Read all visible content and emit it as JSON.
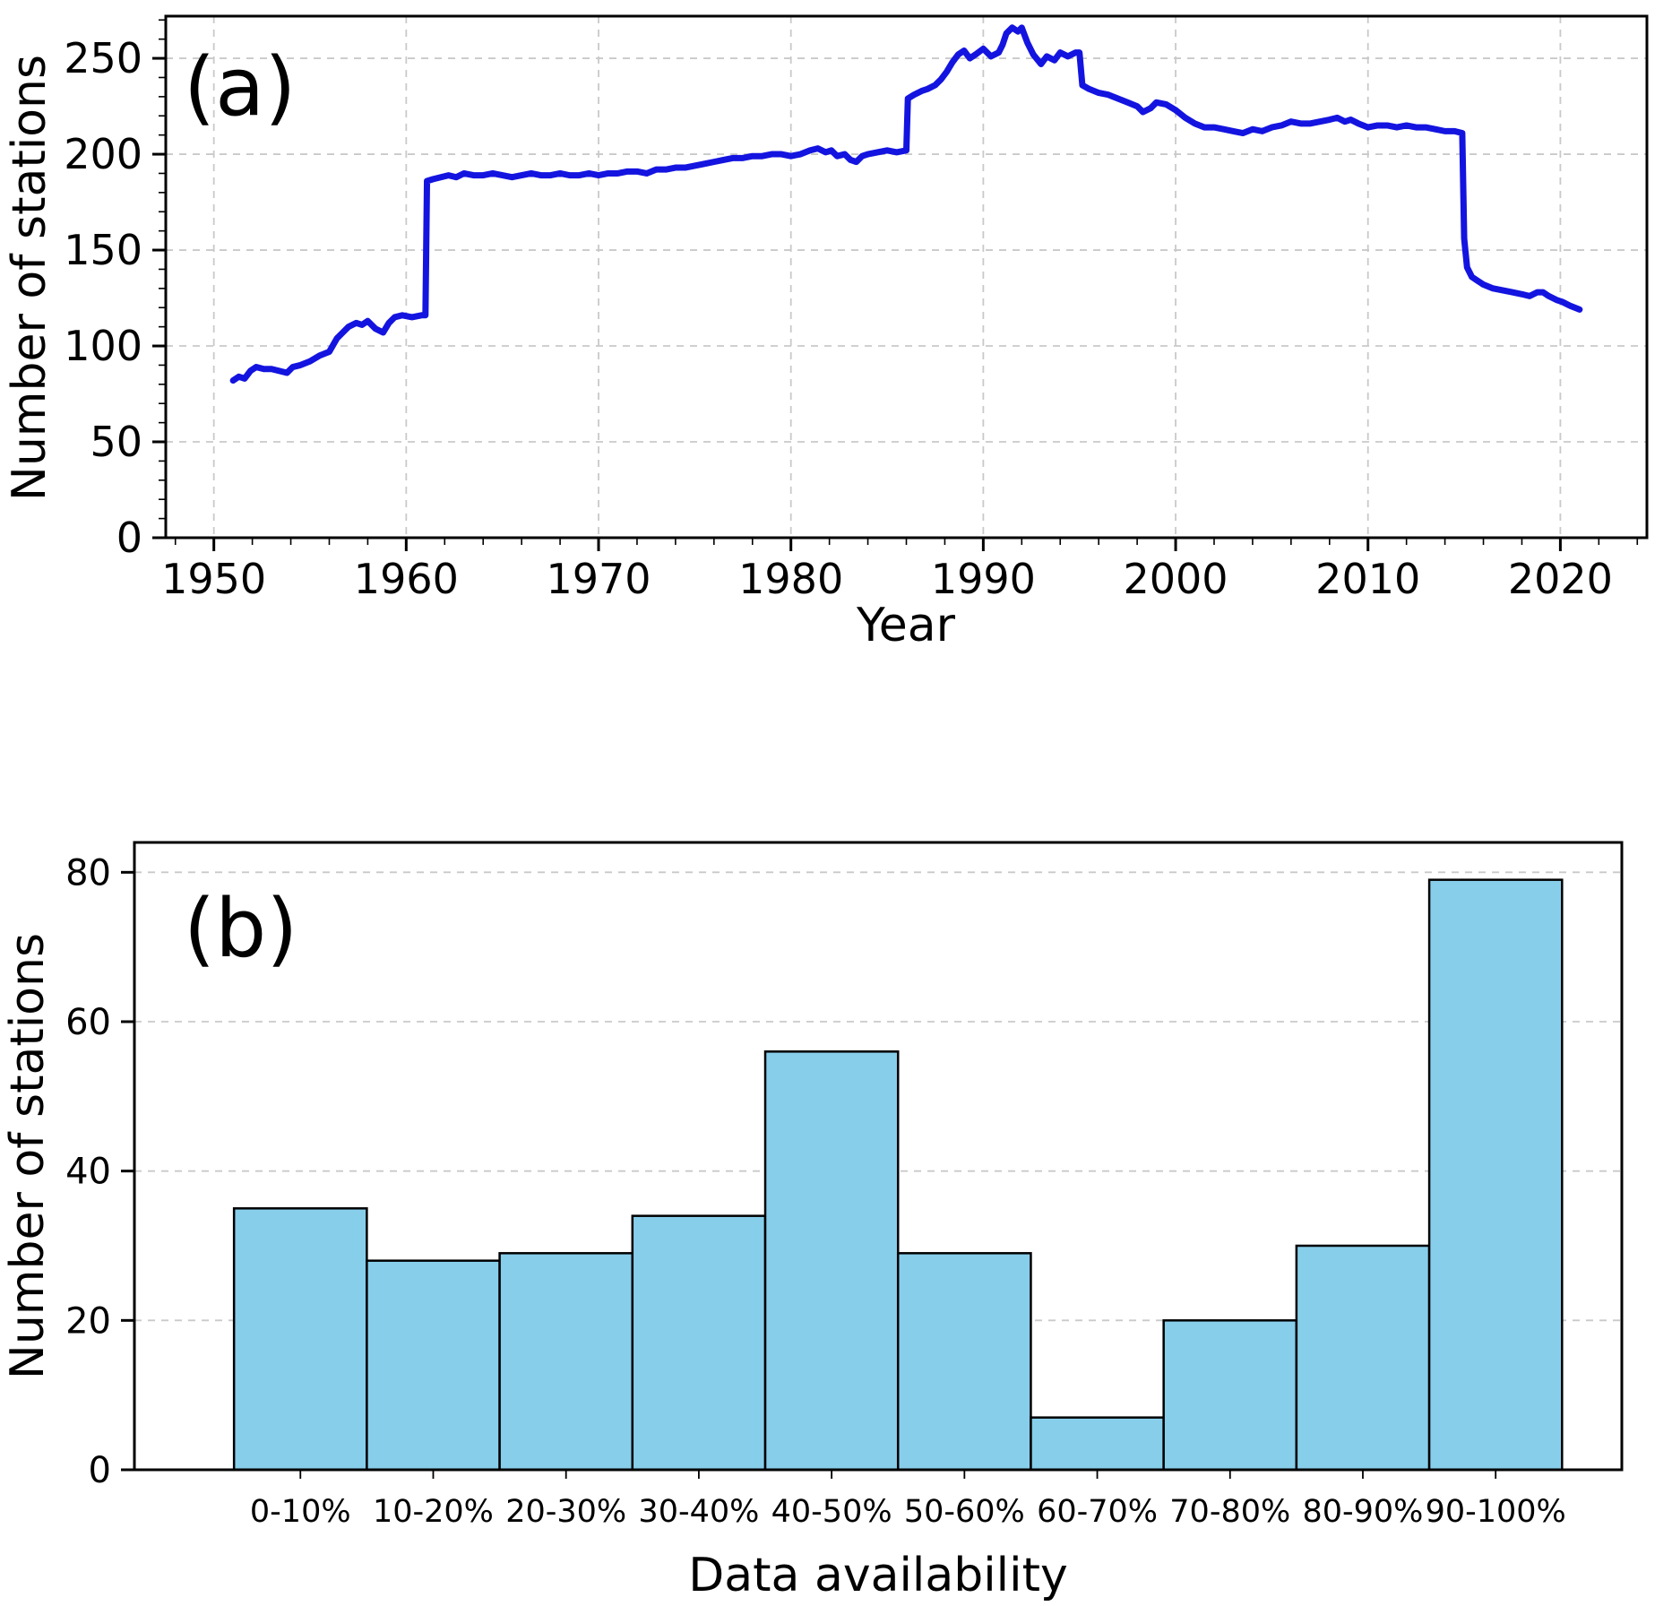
{
  "style": {
    "background": "#ffffff",
    "grid_color": "#c9c9c9",
    "axis_color": "#000000"
  },
  "chart_data": [
    {
      "type": "line",
      "panel_label": "(a)",
      "xlabel": "Year",
      "ylabel": "Number of stations",
      "xlim": [
        1947.5,
        2024.5
      ],
      "ylim": [
        0,
        272
      ],
      "xticks": [
        1950,
        1960,
        1970,
        1980,
        1990,
        2000,
        2010,
        2020
      ],
      "yticks": [
        0,
        50,
        100,
        150,
        200,
        250
      ],
      "grid": "both-dashed",
      "line_color": "#1414e0",
      "series": [
        {
          "name": "Number of stations",
          "points": [
            [
              1951,
              82
            ],
            [
              1951.3,
              84
            ],
            [
              1951.6,
              83
            ],
            [
              1951.9,
              87
            ],
            [
              1952.2,
              89
            ],
            [
              1952.6,
              88
            ],
            [
              1953,
              88
            ],
            [
              1953.4,
              87
            ],
            [
              1953.8,
              86
            ],
            [
              1954.1,
              89
            ],
            [
              1954.5,
              90
            ],
            [
              1955,
              92
            ],
            [
              1955.5,
              95
            ],
            [
              1956,
              97
            ],
            [
              1956.4,
              104
            ],
            [
              1956.7,
              107
            ],
            [
              1957,
              110
            ],
            [
              1957.4,
              112
            ],
            [
              1957.7,
              111
            ],
            [
              1958,
              113
            ],
            [
              1958.4,
              109
            ],
            [
              1958.8,
              107
            ],
            [
              1959.1,
              112
            ],
            [
              1959.4,
              115
            ],
            [
              1959.8,
              116
            ],
            [
              1960.3,
              115
            ],
            [
              1960.8,
              116
            ],
            [
              1961,
              116
            ],
            [
              1961.08,
              186
            ],
            [
              1961.4,
              187
            ],
            [
              1961.8,
              188
            ],
            [
              1962.2,
              189
            ],
            [
              1962.6,
              188
            ],
            [
              1963,
              190
            ],
            [
              1963.5,
              189
            ],
            [
              1964,
              189
            ],
            [
              1964.5,
              190
            ],
            [
              1965,
              189
            ],
            [
              1965.5,
              188
            ],
            [
              1966,
              189
            ],
            [
              1966.5,
              190
            ],
            [
              1967,
              189
            ],
            [
              1967.5,
              189
            ],
            [
              1968,
              190
            ],
            [
              1968.5,
              189
            ],
            [
              1969,
              189
            ],
            [
              1969.5,
              190
            ],
            [
              1970,
              189
            ],
            [
              1970.5,
              190
            ],
            [
              1971,
              190
            ],
            [
              1971.5,
              191
            ],
            [
              1972,
              191
            ],
            [
              1972.5,
              190
            ],
            [
              1973,
              192
            ],
            [
              1973.5,
              192
            ],
            [
              1974,
              193
            ],
            [
              1974.5,
              193
            ],
            [
              1975,
              194
            ],
            [
              1975.5,
              195
            ],
            [
              1976,
              196
            ],
            [
              1976.5,
              197
            ],
            [
              1977,
              198
            ],
            [
              1977.5,
              198
            ],
            [
              1978,
              199
            ],
            [
              1978.5,
              199
            ],
            [
              1979,
              200
            ],
            [
              1979.5,
              200
            ],
            [
              1980,
              199
            ],
            [
              1980.5,
              200
            ],
            [
              1981,
              202
            ],
            [
              1981.4,
              203
            ],
            [
              1981.8,
              201
            ],
            [
              1982.1,
              202
            ],
            [
              1982.4,
              199
            ],
            [
              1982.8,
              200
            ],
            [
              1983.1,
              197
            ],
            [
              1983.4,
              196
            ],
            [
              1983.7,
              199
            ],
            [
              1984,
              200
            ],
            [
              1984.5,
              201
            ],
            [
              1985,
              202
            ],
            [
              1985.5,
              201
            ],
            [
              1986,
              202
            ],
            [
              1986.08,
              229
            ],
            [
              1986.4,
              231
            ],
            [
              1986.8,
              233
            ],
            [
              1987.1,
              234
            ],
            [
              1987.5,
              236
            ],
            [
              1987.8,
              239
            ],
            [
              1988.1,
              243
            ],
            [
              1988.4,
              248
            ],
            [
              1988.7,
              252
            ],
            [
              1989,
              254
            ],
            [
              1989.3,
              250
            ],
            [
              1989.6,
              252
            ],
            [
              1990,
              255
            ],
            [
              1990.4,
              251
            ],
            [
              1990.8,
              253
            ],
            [
              1991,
              257
            ],
            [
              1991.2,
              263
            ],
            [
              1991.5,
              266
            ],
            [
              1991.8,
              264
            ],
            [
              1992,
              266
            ],
            [
              1992.3,
              258
            ],
            [
              1992.6,
              252
            ],
            [
              1993,
              247
            ],
            [
              1993.3,
              251
            ],
            [
              1993.7,
              249
            ],
            [
              1994,
              253
            ],
            [
              1994.4,
              251
            ],
            [
              1994.8,
              253
            ],
            [
              1995,
              253
            ],
            [
              1995.15,
              236
            ],
            [
              1995.5,
              234
            ],
            [
              1996,
              232
            ],
            [
              1996.5,
              231
            ],
            [
              1997,
              229
            ],
            [
              1997.5,
              227
            ],
            [
              1998,
              225
            ],
            [
              1998.3,
              222
            ],
            [
              1998.7,
              224
            ],
            [
              1999,
              227
            ],
            [
              1999.5,
              226
            ],
            [
              2000,
              223
            ],
            [
              2000.5,
              219
            ],
            [
              2001,
              216
            ],
            [
              2001.5,
              214
            ],
            [
              2002,
              214
            ],
            [
              2002.5,
              213
            ],
            [
              2003,
              212
            ],
            [
              2003.5,
              211
            ],
            [
              2004,
              213
            ],
            [
              2004.5,
              212
            ],
            [
              2005,
              214
            ],
            [
              2005.5,
              215
            ],
            [
              2006,
              217
            ],
            [
              2006.5,
              216
            ],
            [
              2007,
              216
            ],
            [
              2007.5,
              217
            ],
            [
              2008,
              218
            ],
            [
              2008.4,
              219
            ],
            [
              2008.8,
              217
            ],
            [
              2009.1,
              218
            ],
            [
              2009.5,
              216
            ],
            [
              2010,
              214
            ],
            [
              2010.5,
              215
            ],
            [
              2011,
              215
            ],
            [
              2011.5,
              214
            ],
            [
              2012,
              215
            ],
            [
              2012.5,
              214
            ],
            [
              2013,
              214
            ],
            [
              2013.5,
              213
            ],
            [
              2014,
              212
            ],
            [
              2014.5,
              212
            ],
            [
              2014.9,
              211
            ],
            [
              2015,
              156
            ],
            [
              2015.15,
              141
            ],
            [
              2015.4,
              136
            ],
            [
              2015.7,
              134
            ],
            [
              2016,
              132
            ],
            [
              2016.5,
              130
            ],
            [
              2017,
              129
            ],
            [
              2017.5,
              128
            ],
            [
              2018,
              127
            ],
            [
              2018.4,
              126
            ],
            [
              2018.8,
              128
            ],
            [
              2019.1,
              128
            ],
            [
              2019.4,
              126
            ],
            [
              2019.8,
              124
            ],
            [
              2020.1,
              123
            ],
            [
              2020.5,
              121
            ],
            [
              2021,
              119
            ]
          ]
        }
      ]
    },
    {
      "type": "bar",
      "panel_label": "(b)",
      "xlabel": "Data availability",
      "ylabel": "Number of stations",
      "categories": [
        "0-10%",
        "10-20%",
        "20-30%",
        "30-40%",
        "40-50%",
        "50-60%",
        "60-70%",
        "70-80%",
        "80-90%",
        "90-100%"
      ],
      "values": [
        35,
        28,
        29,
        34,
        56,
        29,
        7,
        20,
        30,
        79
      ],
      "ylim": [
        0,
        84
      ],
      "yticks": [
        0,
        20,
        40,
        60,
        80
      ],
      "grid": "horizontal-dashed",
      "bar_color": "#87CEEB",
      "bar_edge_color": "#000000"
    }
  ]
}
